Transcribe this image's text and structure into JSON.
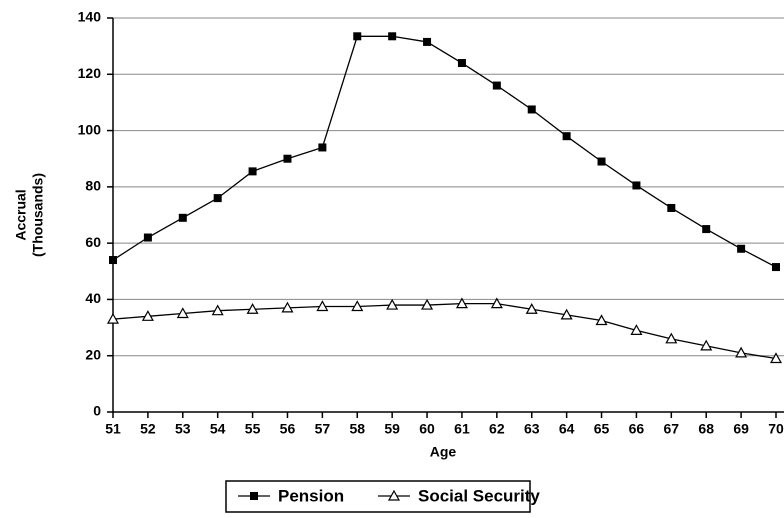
{
  "chart_data": {
    "type": "line",
    "xlabel": "Age",
    "ylabel": [
      "Accrual",
      "(Thousands)"
    ],
    "x": [
      51,
      52,
      53,
      54,
      55,
      56,
      57,
      58,
      59,
      60,
      61,
      62,
      63,
      64,
      65,
      66,
      67,
      68,
      69,
      70
    ],
    "xlim": [
      51,
      70
    ],
    "xticks": [
      51,
      52,
      53,
      54,
      55,
      56,
      57,
      58,
      59,
      60,
      61,
      62,
      63,
      64,
      65,
      66,
      67,
      68,
      69,
      70
    ],
    "ylim": [
      0,
      140
    ],
    "yticks": [
      0,
      20,
      40,
      60,
      80,
      100,
      120,
      140
    ],
    "grid": true,
    "legend": "bottom",
    "series": [
      {
        "name": "Pension",
        "color": "#000000",
        "marker": "square",
        "values": [
          54,
          62,
          69,
          76,
          85.5,
          90,
          94,
          133.5,
          133.5,
          131.5,
          124,
          116,
          107.5,
          98,
          89,
          80.5,
          72.5,
          65,
          58,
          51.5
        ]
      },
      {
        "name": "Social Security",
        "color": "#000000",
        "marker": "triangle",
        "values": [
          33,
          34,
          35,
          36,
          36.5,
          37,
          37.5,
          37.5,
          38,
          38,
          38.5,
          38.5,
          36.5,
          34.5,
          32.5,
          29,
          26,
          23.5,
          21,
          19
        ]
      }
    ]
  }
}
